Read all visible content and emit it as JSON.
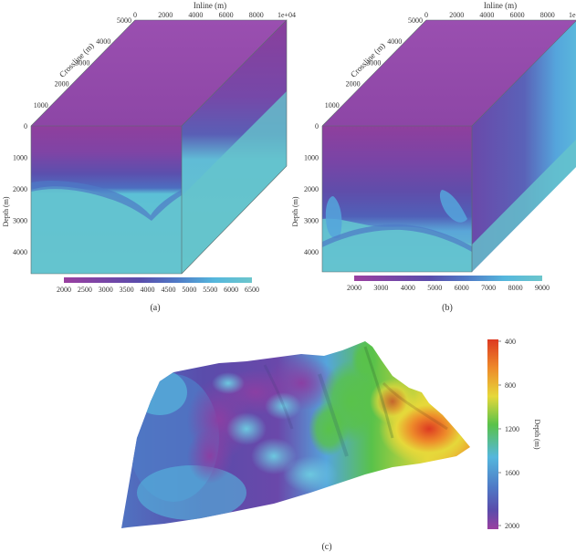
{
  "colors": {
    "magenta": "#9a3fa0",
    "purple": "#7a45a6",
    "indigo": "#5a4cab",
    "blue": "#4f79c6",
    "sky": "#55b7dd",
    "cyan": "#6cc6cc",
    "green": "#59c24a",
    "yellow": "#e6d83a",
    "orange": "#ee8a2a",
    "red": "#dd3a22",
    "edge": "#5a6a6a"
  },
  "panels": [
    {
      "id": "a",
      "caption": "(a)",
      "inline_label": "Inline (m)",
      "inline_ticks": [
        "0",
        "2000",
        "4000",
        "6000",
        "8000",
        "1e+04"
      ],
      "crossline_label": "Crossline (m)",
      "crossline_ticks": [
        "0",
        "1000",
        "2000",
        "3000",
        "4000",
        "5000"
      ],
      "depth_label": "Depth (m)",
      "depth_ticks": [
        "0",
        "1000",
        "2000",
        "3000",
        "4000"
      ],
      "colorbar_ticks": [
        "2000",
        "2500",
        "3000",
        "3500",
        "4000",
        "4500",
        "5000",
        "5500",
        "6000",
        "6500"
      ],
      "colorbar_colors": [
        "magenta",
        "purple",
        "indigo",
        "blue",
        "sky",
        "cyan"
      ]
    },
    {
      "id": "b",
      "caption": "(b)",
      "inline_label": "Inline (m)",
      "inline_ticks": [
        "0",
        "2000",
        "4000",
        "6000",
        "8000",
        "1e+04"
      ],
      "crossline_label": "Crossline (m)",
      "crossline_ticks": [
        "0",
        "1000",
        "2000",
        "3000",
        "4000",
        "5000"
      ],
      "depth_label": "Depth (m)",
      "depth_ticks": [
        "0",
        "1000",
        "2000",
        "3000",
        "4000"
      ],
      "colorbar_ticks": [
        "2000",
        "3000",
        "4000",
        "5000",
        "6000",
        "7000",
        "8000",
        "9000"
      ],
      "colorbar_colors": [
        "magenta",
        "purple",
        "indigo",
        "blue",
        "sky",
        "cyan"
      ]
    }
  ],
  "surface": {
    "caption": "(c)",
    "colorbar_label": "Depth (m)",
    "colorbar_ticks": [
      "400",
      "800",
      "1200",
      "1600",
      "2000"
    ],
    "colorbar_colors": [
      "red",
      "orange",
      "yellow",
      "green",
      "sky",
      "blue",
      "indigo",
      "magenta"
    ]
  }
}
